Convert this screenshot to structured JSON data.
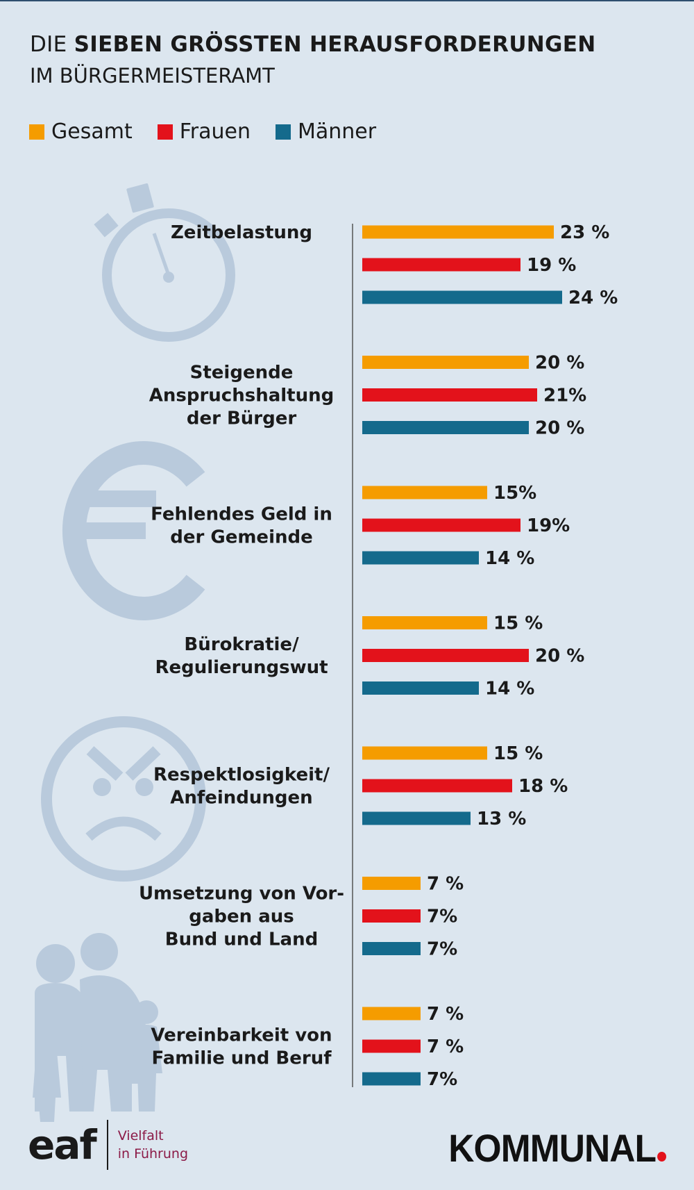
{
  "header": {
    "title_prefix": "DIE ",
    "title_bold": "SIEBEN GRÖSSTEN HERAUSFORDERUNGEN",
    "title_line2": "IM BÜRGERMEISTERAMT"
  },
  "colors": {
    "gesamt": "#f59c00",
    "frauen": "#e3121b",
    "maenner": "#146a8c",
    "icon": "#b9cadc"
  },
  "chart_data": {
    "type": "bar",
    "orientation": "horizontal",
    "categories": [
      [
        "Zeitbelastung"
      ],
      [
        "Steigende",
        "Anspruchshaltung",
        "der Bürger"
      ],
      [
        "Fehlendes Geld in",
        "der Gemeinde"
      ],
      [
        "Bürokratie/",
        "Regulierungswut"
      ],
      [
        "Respektlosigkeit/",
        "Anfeindungen"
      ],
      [
        "Umsetzung von Vor-",
        "gaben aus",
        "Bund und Land"
      ],
      [
        "Vereinbarkeit von",
        "Familie und Beruf"
      ]
    ],
    "series": [
      {
        "name": "Gesamt",
        "values": [
          23,
          20,
          15,
          15,
          15,
          7,
          7
        ],
        "labels": [
          "23 %",
          "20 %",
          "15%",
          "15 %",
          "15 %",
          "7 %",
          "7 %"
        ]
      },
      {
        "name": "Frauen",
        "values": [
          19,
          21,
          19,
          20,
          18,
          7,
          7
        ],
        "labels": [
          "19 %",
          "21%",
          "19%",
          "20 %",
          "18 %",
          "7%",
          "7 %"
        ]
      },
      {
        "name": "Männer",
        "values": [
          24,
          20,
          14,
          14,
          13,
          7,
          7
        ],
        "labels": [
          "24 %",
          "20 %",
          "14 %",
          "14 %",
          "13 %",
          "7%",
          "7%"
        ]
      }
    ],
    "xlim": [
      0,
      24
    ],
    "legend_position": "top-left",
    "grid": false
  },
  "icons": [
    "stopwatch-icon",
    "euro-icon",
    "angry-face-icon",
    "family-icon"
  ],
  "footer": {
    "eaf_logo": "eaf",
    "eaf_tagline_1": "Vielfalt",
    "eaf_tagline_2": "in Führung",
    "publisher": "KOMMUNAL"
  }
}
